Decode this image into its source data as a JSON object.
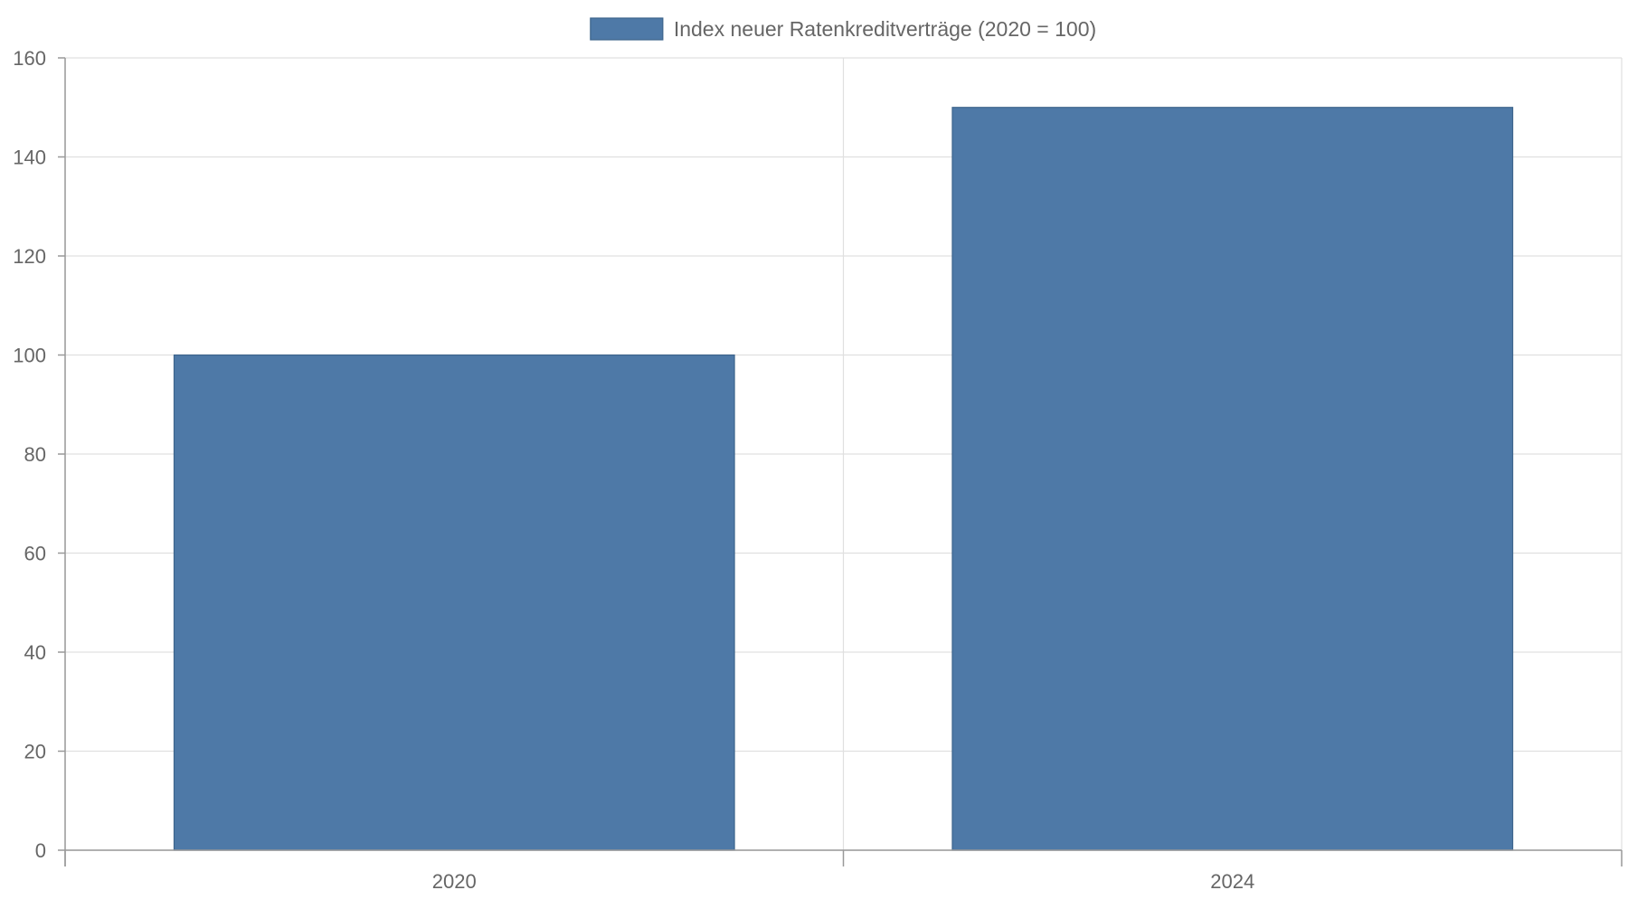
{
  "chart_data": {
    "type": "bar",
    "title": "",
    "xlabel": "",
    "ylabel": "",
    "categories": [
      "2020",
      "2024"
    ],
    "series": [
      {
        "name": "Index neuer Ratenkreditverträge (2020 = 100)",
        "values": [
          100,
          150
        ],
        "color": "#4e79a7"
      }
    ],
    "ylim": [
      0,
      160
    ],
    "yticks": [
      0,
      20,
      40,
      60,
      80,
      100,
      120,
      140,
      160
    ],
    "grid": true,
    "legend_position": "top-center"
  }
}
